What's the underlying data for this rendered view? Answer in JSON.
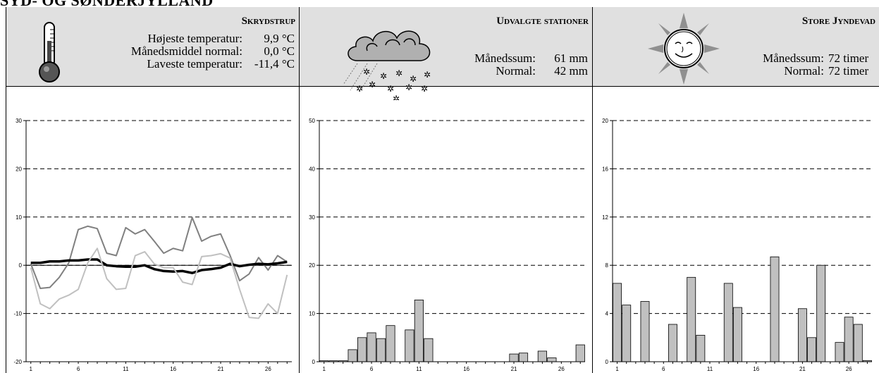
{
  "region_title": "SYD- OG SØNDERJYLLAND",
  "panels": {
    "temperature": {
      "title": "Skrydstrup",
      "icon": "thermometer-icon",
      "stats": [
        {
          "label": "Højeste temperatur:",
          "value": "9,9 °C"
        },
        {
          "label": "Månedsmiddel normal:",
          "value": "0,0 °C"
        },
        {
          "label": "Laveste temperatur:",
          "value": "-11,4 °C"
        }
      ]
    },
    "precipitation": {
      "title": "Udvalgte stationer",
      "icon": "snow-cloud-icon",
      "stats": [
        {
          "label": "Månedssum:",
          "value": "61 mm"
        },
        {
          "label": "Normal:",
          "value": "42 mm"
        }
      ]
    },
    "sunshine": {
      "title": "Store Jyndevad",
      "icon": "sun-icon",
      "stats": [
        {
          "label": "Månedssum:",
          "value": "72 timer"
        },
        {
          "label": "Normal:",
          "value": "72 timer"
        }
      ]
    }
  },
  "chart_data": [
    {
      "type": "line",
      "x": [
        1,
        2,
        3,
        4,
        5,
        6,
        7,
        8,
        9,
        10,
        11,
        12,
        13,
        14,
        15,
        16,
        17,
        18,
        19,
        20,
        21,
        22,
        23,
        24,
        25,
        26,
        27,
        28
      ],
      "xticks": [
        1,
        6,
        11,
        16,
        21,
        26
      ],
      "ylim": [
        -20,
        30
      ],
      "yticks": [
        -20,
        -10,
        0,
        10,
        20,
        30
      ],
      "grid": "dashed",
      "series": [
        {
          "color": "#808080",
          "width": 2,
          "values": [
            0.3,
            -4.8,
            -4.6,
            -2.5,
            0.5,
            7.4,
            8.1,
            7.6,
            2.5,
            2.0,
            7.8,
            6.5,
            7.4,
            5.0,
            2.5,
            3.5,
            3.0,
            9.9,
            5.0,
            6.0,
            6.5,
            2.0,
            -3.2,
            -1.8,
            1.6,
            -1.0,
            2.0,
            0.7
          ]
        },
        {
          "color": "#000000",
          "width": 3.5,
          "values": [
            0.5,
            0.5,
            0.8,
            0.8,
            1.0,
            1.0,
            1.2,
            1.2,
            0.0,
            -0.2,
            -0.3,
            -0.3,
            0.0,
            -0.8,
            -1.2,
            -1.3,
            -1.2,
            -1.6,
            -1.0,
            -0.8,
            -0.5,
            0.3,
            -0.2,
            0.1,
            0.3,
            0.2,
            0.4,
            0.7
          ]
        },
        {
          "color": "#c0c0c0",
          "width": 2,
          "values": [
            -0.5,
            -8.0,
            -9.0,
            -7.0,
            -6.2,
            -5.0,
            0.5,
            3.5,
            -2.8,
            -5.0,
            -4.8,
            2.0,
            2.8,
            0.3,
            -0.5,
            -0.5,
            -3.5,
            -4.0,
            1.8,
            2.0,
            2.4,
            1.5,
            -5.0,
            -10.8,
            -11.0,
            -8.0,
            -10.0,
            -2.0
          ]
        }
      ]
    },
    {
      "type": "bar",
      "x": [
        1,
        2,
        3,
        4,
        5,
        6,
        7,
        8,
        9,
        10,
        11,
        12,
        13,
        14,
        15,
        16,
        17,
        18,
        19,
        20,
        21,
        22,
        23,
        24,
        25,
        26,
        27,
        28
      ],
      "values": [
        0.2,
        0.2,
        0.2,
        2.5,
        5.0,
        6.0,
        4.8,
        7.5,
        0,
        6.6,
        12.8,
        4.8,
        0,
        0,
        0,
        0,
        0,
        0,
        0,
        0,
        1.6,
        1.8,
        0,
        2.2,
        0.8,
        0,
        0,
        3.5
      ],
      "xticks": [
        1,
        6,
        11,
        16,
        21,
        26
      ],
      "ylim": [
        0,
        50
      ],
      "yticks": [
        0,
        10,
        20,
        30,
        40,
        50
      ],
      "grid": "dashed",
      "bar_color": "#c0c0c0"
    },
    {
      "type": "bar",
      "x": [
        1,
        2,
        3,
        4,
        5,
        6,
        7,
        8,
        9,
        10,
        11,
        12,
        13,
        14,
        15,
        16,
        17,
        18,
        19,
        20,
        21,
        22,
        23,
        24,
        25,
        26,
        27,
        28
      ],
      "values": [
        6.5,
        4.7,
        0,
        5.0,
        0,
        0,
        3.1,
        0,
        7.0,
        2.2,
        0,
        0,
        6.5,
        4.5,
        0,
        0,
        0,
        8.7,
        0,
        0,
        4.4,
        2.0,
        8.0,
        0,
        1.6,
        3.7,
        3.1,
        0.1
      ],
      "xticks": [
        1,
        6,
        11,
        16,
        21,
        26
      ],
      "ylim": [
        0,
        20
      ],
      "yticks": [
        0,
        4,
        8,
        12,
        16,
        20
      ],
      "grid": "dashed",
      "bar_color": "#c0c0c0"
    }
  ]
}
